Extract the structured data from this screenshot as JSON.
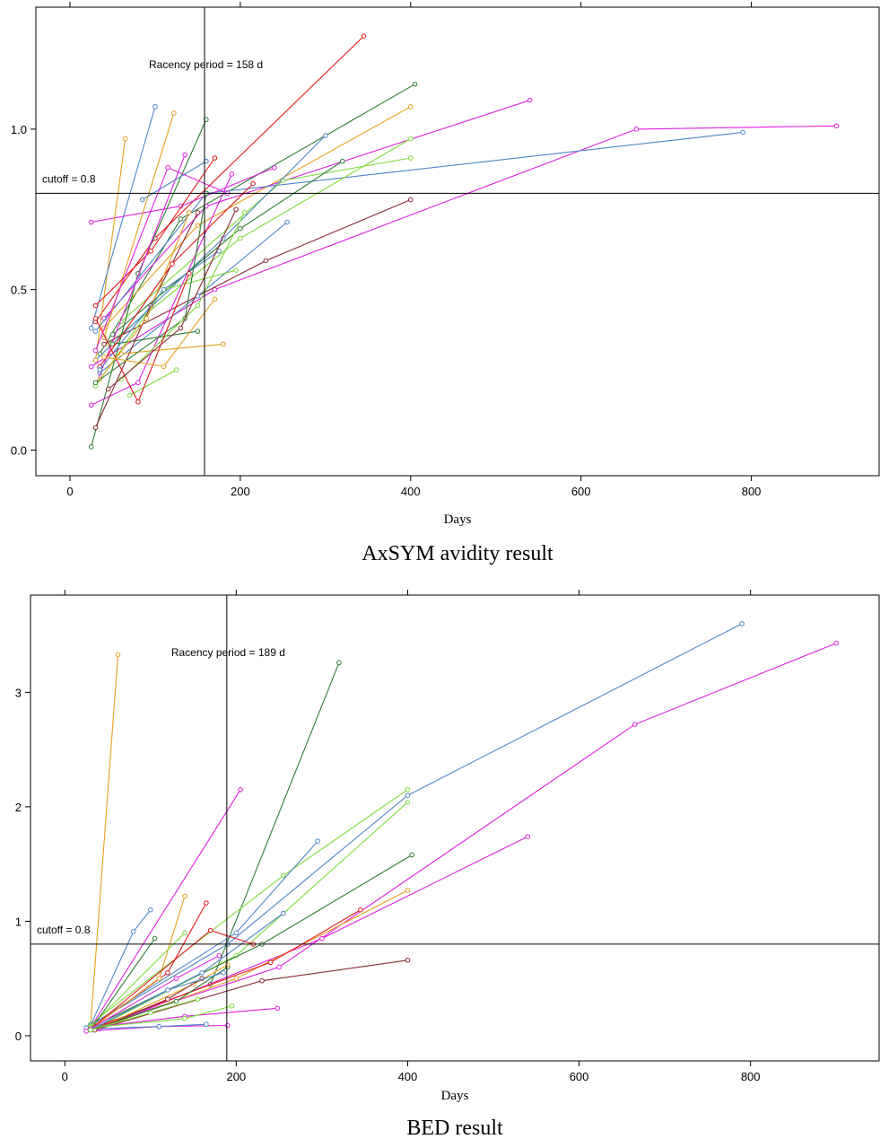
{
  "chart_data": [
    {
      "type": "line",
      "title": "",
      "caption": "AxSYM avidity result",
      "xlabel": "Days",
      "ylabel": "",
      "xlim": [
        -40,
        950
      ],
      "ylim": [
        -0.08,
        1.38
      ],
      "xticks": [
        0,
        200,
        400,
        600,
        800
      ],
      "yticks": [
        0.0,
        0.5,
        1.0
      ],
      "ytick_labels": [
        "0.0",
        "0.5",
        "1.0"
      ],
      "vline": {
        "x": 158,
        "label": "Racency period = 158 d"
      },
      "hline": {
        "y": 0.8,
        "label": "cutoff = 0.8"
      },
      "series": [
        {
          "color": "#e31a1c",
          "points": [
            [
              30,
              0.4
            ],
            [
              100,
              0.66
            ],
            [
              345,
              1.29
            ]
          ]
        },
        {
          "color": "#2e7d32",
          "points": [
            [
              35,
              0.3
            ],
            [
              130,
              0.72
            ],
            [
              405,
              1.14
            ]
          ]
        },
        {
          "color": "#e6a020",
          "points": [
            [
              40,
              0.38
            ],
            [
              150,
              0.7
            ],
            [
              400,
              1.07
            ]
          ]
        },
        {
          "color": "#e020e0",
          "points": [
            [
              40,
              0.41
            ],
            [
              160,
              0.76
            ],
            [
              540,
              1.09
            ]
          ]
        },
        {
          "color": "#e020e0",
          "points": [
            [
              25,
              0.26
            ],
            [
              170,
              0.5
            ],
            [
              665,
              1.0
            ],
            [
              900,
              1.01
            ]
          ]
        },
        {
          "color": "#4f86c6",
          "points": [
            [
              30,
              0.37
            ],
            [
              160,
              0.8
            ],
            [
              790,
              0.99
            ]
          ]
        },
        {
          "color": "#7cdc3c",
          "points": [
            [
              45,
              0.33
            ],
            [
              200,
              0.66
            ],
            [
              400,
              0.97
            ]
          ]
        },
        {
          "color": "#7cdc3c",
          "points": [
            [
              60,
              0.4
            ],
            [
              250,
              0.84
            ],
            [
              400,
              0.91
            ]
          ]
        },
        {
          "color": "#8b2a36",
          "points": [
            [
              40,
              0.33
            ],
            [
              230,
              0.59
            ],
            [
              400,
              0.78
            ]
          ]
        },
        {
          "color": "#4f86c6",
          "points": [
            [
              30,
              0.28
            ],
            [
              180,
              0.66
            ],
            [
              300,
              0.98
            ]
          ]
        },
        {
          "color": "#2e7d32",
          "points": [
            [
              50,
              0.36
            ],
            [
              200,
              0.69
            ],
            [
              320,
              0.9
            ]
          ]
        },
        {
          "color": "#4f86c6",
          "points": [
            [
              35,
              0.24
            ],
            [
              150,
              0.48
            ],
            [
              255,
              0.71
            ]
          ]
        },
        {
          "color": "#e020e0",
          "points": [
            [
              25,
              0.71
            ],
            [
              130,
              0.76
            ],
            [
              240,
              0.88
            ]
          ]
        },
        {
          "color": "#e6a020",
          "points": [
            [
              30,
              0.28
            ],
            [
              65,
              0.97
            ]
          ]
        },
        {
          "color": "#4f86c6",
          "points": [
            [
              25,
              0.38
            ],
            [
              100,
              1.07
            ]
          ]
        },
        {
          "color": "#e6a020",
          "points": [
            [
              40,
              0.35
            ],
            [
              122,
              1.05
            ]
          ]
        },
        {
          "color": "#2e7d32",
          "points": [
            [
              25,
              0.01
            ],
            [
              80,
              0.55
            ],
            [
              160,
              1.03
            ]
          ]
        },
        {
          "color": "#e31a1c",
          "points": [
            [
              30,
              0.45
            ],
            [
              95,
              0.62
            ],
            [
              170,
              0.91
            ]
          ]
        },
        {
          "color": "#e020e0",
          "points": [
            [
              30,
              0.2
            ],
            [
              135,
              0.92
            ]
          ]
        },
        {
          "color": "#7cdc3c",
          "points": [
            [
              30,
              0.2
            ],
            [
              110,
              0.5
            ],
            [
              195,
              0.56
            ]
          ]
        },
        {
          "color": "#e6a020",
          "points": [
            [
              60,
              0.3
            ],
            [
              180,
              0.33
            ]
          ]
        },
        {
          "color": "#2e7d32",
          "points": [
            [
              50,
              0.33
            ],
            [
              150,
              0.37
            ]
          ]
        },
        {
          "color": "#7cdc3c",
          "points": [
            [
              70,
              0.17
            ],
            [
              125,
              0.25
            ]
          ]
        },
        {
          "color": "#e020e0",
          "points": [
            [
              25,
              0.14
            ],
            [
              80,
              0.21
            ],
            [
              190,
              0.86
            ]
          ]
        },
        {
          "color": "#4f86c6",
          "points": [
            [
              85,
              0.78
            ],
            [
              160,
              0.9
            ]
          ]
        },
        {
          "color": "#8b2a36",
          "points": [
            [
              30,
              0.07
            ],
            [
              95,
              0.45
            ],
            [
              150,
              0.74
            ]
          ]
        },
        {
          "color": "#e31a1c",
          "points": [
            [
              35,
              0.26
            ],
            [
              120,
              0.58
            ],
            [
              215,
              0.83
            ]
          ]
        },
        {
          "color": "#e6a020",
          "points": [
            [
              35,
              0.22
            ],
            [
              90,
              0.41
            ],
            [
              140,
              0.74
            ]
          ]
        },
        {
          "color": "#4f86c6",
          "points": [
            [
              35,
              0.25
            ],
            [
              110,
              0.5
            ],
            [
              175,
              0.62
            ]
          ]
        },
        {
          "color": "#e020e0",
          "points": [
            [
              30,
              0.31
            ],
            [
              115,
              0.88
            ],
            [
              185,
              0.8
            ]
          ]
        },
        {
          "color": "#2e7d32",
          "points": [
            [
              30,
              0.21
            ],
            [
              135,
              0.41
            ],
            [
              160,
              0.8
            ]
          ]
        },
        {
          "color": "#7cdc3c",
          "points": [
            [
              60,
              0.22
            ],
            [
              150,
              0.45
            ],
            [
              205,
              0.74
            ]
          ]
        },
        {
          "color": "#e31a1c",
          "points": [
            [
              30,
              0.41
            ],
            [
              80,
              0.15
            ],
            [
              140,
              0.55
            ]
          ]
        },
        {
          "color": "#e6a020",
          "points": [
            [
              40,
              0.29
            ],
            [
              110,
              0.26
            ],
            [
              170,
              0.47
            ]
          ]
        },
        {
          "color": "#8b2a36",
          "points": [
            [
              45,
              0.19
            ],
            [
              130,
              0.38
            ],
            [
              195,
              0.75
            ]
          ]
        }
      ]
    },
    {
      "type": "line",
      "title": "",
      "caption": "BED result",
      "xlabel": "Days",
      "ylabel": "",
      "xlim": [
        -40,
        950
      ],
      "ylim": [
        -0.22,
        3.85
      ],
      "xticks": [
        0,
        200,
        400,
        600,
        800
      ],
      "yticks": [
        0,
        1,
        2,
        3
      ],
      "ytick_labels": [
        "0",
        "1",
        "2",
        "3"
      ],
      "vline": {
        "x": 189,
        "label": "Racency period = 189 d"
      },
      "hline": {
        "y": 0.8,
        "label": "cutoff = 0.8"
      },
      "series": [
        {
          "color": "#e6a020",
          "points": [
            [
              30,
              0.08
            ],
            [
              62,
              3.33
            ]
          ]
        },
        {
          "color": "#2e7d32",
          "points": [
            [
              30,
              0.05
            ],
            [
              170,
              0.45
            ],
            [
              320,
              3.26
            ]
          ]
        },
        {
          "color": "#4f86c6",
          "points": [
            [
              25,
              0.07
            ],
            [
              190,
              0.8
            ],
            [
              400,
              2.1
            ],
            [
              790,
              3.6
            ]
          ]
        },
        {
          "color": "#e020e0",
          "points": [
            [
              30,
              0.06
            ],
            [
              250,
              0.6
            ],
            [
              665,
              2.72
            ],
            [
              900,
              3.43
            ]
          ]
        },
        {
          "color": "#7cdc3c",
          "points": [
            [
              30,
              0.1
            ],
            [
              255,
              1.4
            ],
            [
              400,
              2.15
            ]
          ]
        },
        {
          "color": "#7cdc3c",
          "points": [
            [
              40,
              0.08
            ],
            [
              200,
              0.7
            ],
            [
              400,
              2.04
            ]
          ]
        },
        {
          "color": "#4f86c6",
          "points": [
            [
              30,
              0.09
            ],
            [
              200,
              0.9
            ],
            [
              295,
              1.7
            ]
          ]
        },
        {
          "color": "#e020e0",
          "points": [
            [
              30,
              0.07
            ],
            [
              205,
              2.15
            ]
          ]
        },
        {
          "color": "#2e7d32",
          "points": [
            [
              30,
              0.07
            ],
            [
              230,
              0.8
            ],
            [
              405,
              1.58
            ]
          ]
        },
        {
          "color": "#e020e0",
          "points": [
            [
              40,
              0.06
            ],
            [
              300,
              0.85
            ],
            [
              540,
              1.74
            ]
          ]
        },
        {
          "color": "#e6a020",
          "points": [
            [
              35,
              0.05
            ],
            [
              200,
              0.5
            ],
            [
              400,
              1.27
            ]
          ]
        },
        {
          "color": "#8b2a36",
          "points": [
            [
              35,
              0.05
            ],
            [
              230,
              0.48
            ],
            [
              400,
              0.66
            ]
          ]
        },
        {
          "color": "#e31a1c",
          "points": [
            [
              30,
              0.06
            ],
            [
              240,
              0.64
            ],
            [
              345,
              1.1
            ]
          ]
        },
        {
          "color": "#4f86c6",
          "points": [
            [
              30,
              0.09
            ],
            [
              80,
              0.91
            ],
            [
              100,
              1.1
            ]
          ]
        },
        {
          "color": "#4f86c6",
          "points": [
            [
              30,
              0.05
            ],
            [
              160,
              0.55
            ],
            [
              255,
              1.07
            ]
          ]
        },
        {
          "color": "#e31a1c",
          "points": [
            [
              30,
              0.06
            ],
            [
              120,
              0.55
            ],
            [
              165,
              1.16
            ]
          ]
        },
        {
          "color": "#e6a020",
          "points": [
            [
              30,
              0.06
            ],
            [
              110,
              0.5
            ],
            [
              140,
              1.22
            ]
          ]
        },
        {
          "color": "#7cdc3c",
          "points": [
            [
              30,
              0.08
            ],
            [
              140,
              0.9
            ]
          ]
        },
        {
          "color": "#2e7d32",
          "points": [
            [
              30,
              0.05
            ],
            [
              105,
              0.85
            ]
          ]
        },
        {
          "color": "#e020e0",
          "points": [
            [
              30,
              0.07
            ],
            [
              140,
              0.17
            ],
            [
              248,
              0.24
            ]
          ]
        },
        {
          "color": "#e020e0",
          "points": [
            [
              25,
              0.04
            ],
            [
              110,
              0.08
            ],
            [
              190,
              0.09
            ]
          ]
        },
        {
          "color": "#4f86c6",
          "points": [
            [
              30,
              0.06
            ],
            [
              110,
              0.08
            ],
            [
              165,
              0.1
            ]
          ]
        },
        {
          "color": "#7cdc3c",
          "points": [
            [
              30,
              0.07
            ],
            [
              140,
              0.15
            ],
            [
              195,
              0.26
            ]
          ]
        },
        {
          "color": "#e31a1c",
          "points": [
            [
              30,
              0.06
            ],
            [
              170,
              0.92
            ],
            [
              220,
              0.8
            ]
          ]
        },
        {
          "color": "#2e7d32",
          "points": [
            [
              30,
              0.05
            ],
            [
              130,
              0.3
            ],
            [
              190,
              0.6
            ]
          ]
        },
        {
          "color": "#e6a020",
          "points": [
            [
              35,
              0.05
            ],
            [
              150,
              0.45
            ],
            [
              190,
              0.62
            ]
          ]
        },
        {
          "color": "#8b2a36",
          "points": [
            [
              35,
              0.05
            ],
            [
              120,
              0.32
            ],
            [
              160,
              0.5
            ]
          ]
        },
        {
          "color": "#e020e0",
          "points": [
            [
              30,
              0.06
            ],
            [
              130,
              0.5
            ],
            [
              180,
              0.7
            ]
          ]
        },
        {
          "color": "#4f86c6",
          "points": [
            [
              30,
              0.05
            ],
            [
              120,
              0.4
            ],
            [
              185,
              0.55
            ]
          ]
        },
        {
          "color": "#7cdc3c",
          "points": [
            [
              30,
              0.05
            ],
            [
              100,
              0.2
            ],
            [
              155,
              0.32
            ]
          ]
        }
      ]
    }
  ]
}
